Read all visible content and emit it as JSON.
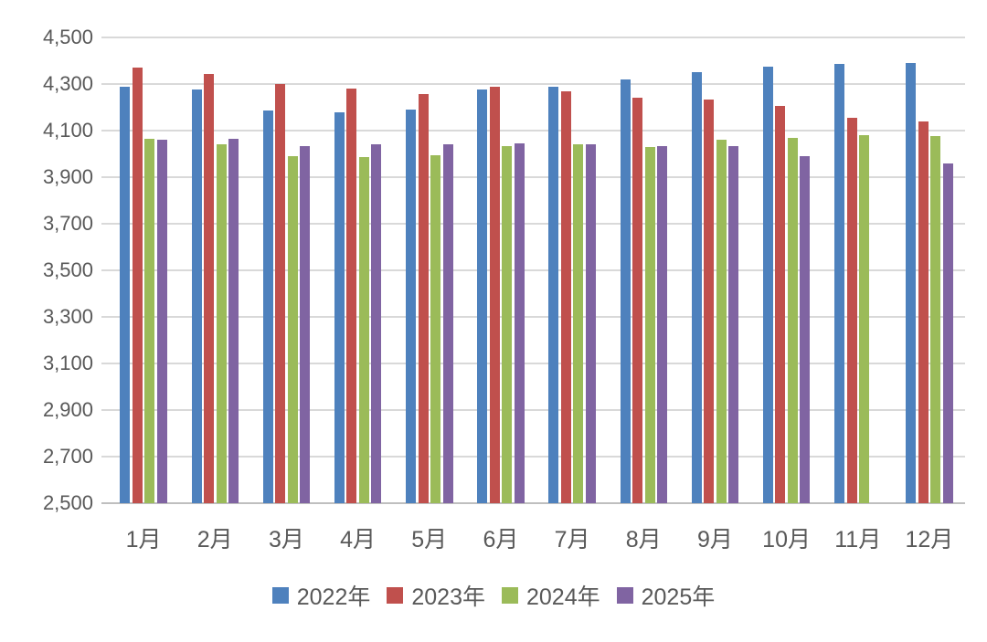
{
  "chart_data": {
    "type": "bar",
    "title": "",
    "xlabel": "",
    "ylabel": "",
    "categories": [
      "1月",
      "2月",
      "3月",
      "4月",
      "5月",
      "6月",
      "7月",
      "8月",
      "9月",
      "10月",
      "11月",
      "12月"
    ],
    "series": [
      {
        "name": "2022年",
        "color": "#4E81BD",
        "values": [
          4290,
          4275,
          4185,
          4180,
          4190,
          4275,
          4290,
          4320,
          4350,
          4375,
          4385,
          4390
        ]
      },
      {
        "name": "2023年",
        "color": "#C0504D",
        "values": [
          4370,
          4345,
          4300,
          4280,
          4255,
          4290,
          4270,
          4240,
          4235,
          4205,
          4155,
          4140
        ]
      },
      {
        "name": "2024年",
        "color": "#9BBB59",
        "values": [
          4065,
          4040,
          3990,
          3985,
          3995,
          4035,
          4040,
          4030,
          4060,
          4070,
          4080,
          4075
        ]
      },
      {
        "name": "2025年",
        "color": "#8064A2",
        "values": [
          4060,
          4065,
          4035,
          4040,
          4040,
          4045,
          4040,
          4035,
          4035,
          3990,
          null,
          3960
        ]
      }
    ],
    "ylim": [
      2500,
      4500
    ],
    "ytick_step": 200,
    "ytick_labels": [
      "4,500",
      "4,300",
      "4,100",
      "3,900",
      "3,700",
      "3,500",
      "3,300",
      "3,100",
      "2,900",
      "2,700",
      "2,500"
    ],
    "grid": true,
    "legend_position": "bottom"
  },
  "colors": {
    "axis_text": "#595959",
    "gridline": "#D9D9D9",
    "baseline": "#BFBFBF",
    "background": "#FFFFFF"
  }
}
